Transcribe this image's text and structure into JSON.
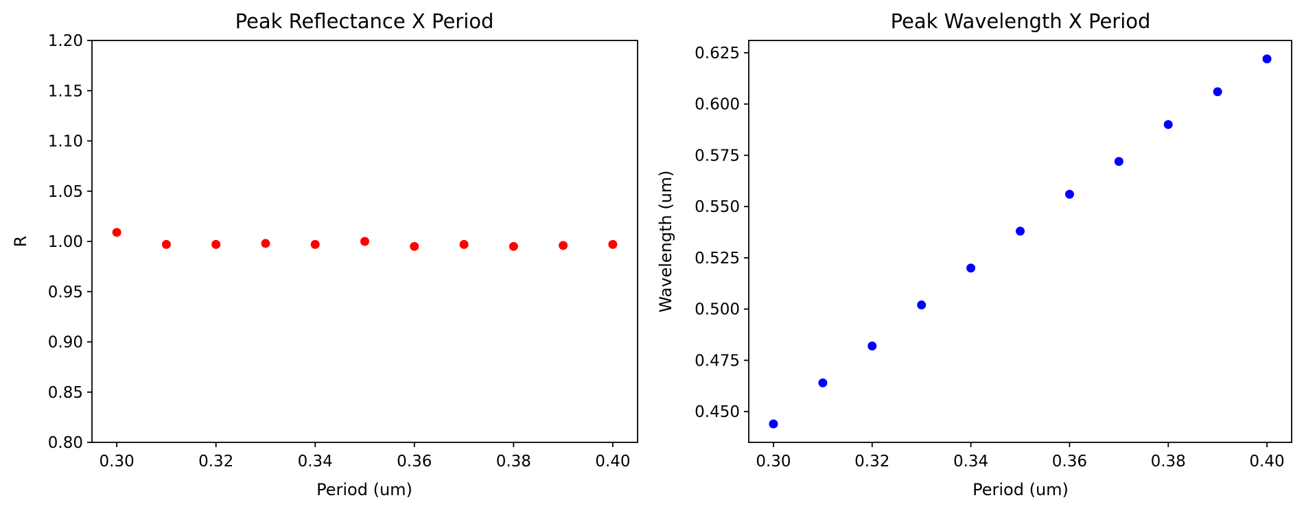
{
  "chart_data": [
    {
      "type": "scatter",
      "title": "Peak Reflectance X Period",
      "xlabel": "Period (um)",
      "ylabel": "R",
      "xlim": [
        0.295,
        0.405
      ],
      "ylim": [
        0.8,
        1.2
      ],
      "xticks": [
        "0.30",
        "0.32",
        "0.34",
        "0.36",
        "0.38",
        "0.40"
      ],
      "yticks": [
        "0.80",
        "0.85",
        "0.90",
        "0.95",
        "1.00",
        "1.05",
        "1.10",
        "1.15",
        "1.20"
      ],
      "grid": false,
      "color": "#ff0000",
      "series": [
        {
          "x": [
            0.3,
            0.31,
            0.32,
            0.33,
            0.34,
            0.35,
            0.36,
            0.37,
            0.38,
            0.39,
            0.4
          ],
          "y": [
            1.009,
            0.997,
            0.997,
            0.998,
            0.997,
            1.0,
            0.995,
            0.997,
            0.995,
            0.996,
            0.997
          ]
        }
      ]
    },
    {
      "type": "scatter",
      "title": "Peak Wavelength X Period",
      "xlabel": "Period (um)",
      "ylabel": "Wavelength (um)",
      "xlim": [
        0.295,
        0.405
      ],
      "ylim": [
        0.435,
        0.631
      ],
      "xticks": [
        "0.30",
        "0.32",
        "0.34",
        "0.36",
        "0.38",
        "0.40"
      ],
      "yticks": [
        "0.450",
        "0.475",
        "0.500",
        "0.525",
        "0.550",
        "0.575",
        "0.600",
        "0.625"
      ],
      "grid": false,
      "color": "#0000ff",
      "series": [
        {
          "x": [
            0.3,
            0.31,
            0.32,
            0.33,
            0.34,
            0.35,
            0.36,
            0.37,
            0.38,
            0.39,
            0.4
          ],
          "y": [
            0.444,
            0.464,
            0.482,
            0.502,
            0.52,
            0.538,
            0.556,
            0.572,
            0.59,
            0.606,
            0.622
          ]
        }
      ]
    }
  ]
}
